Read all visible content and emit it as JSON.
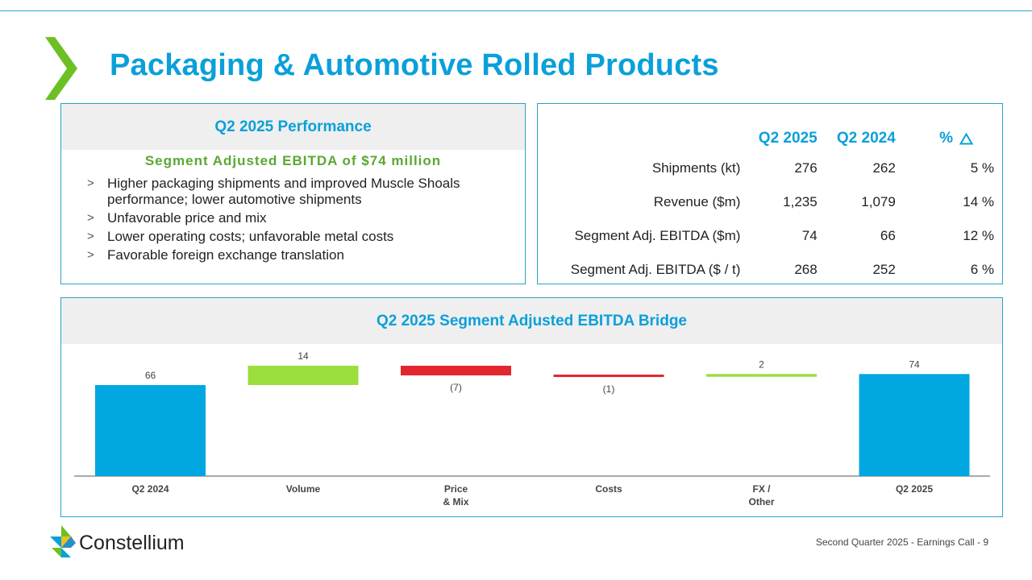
{
  "slide": {
    "title": "Packaging & Automotive Rolled Products",
    "footer": "Second Quarter 2025 -  Earnings Call - 9",
    "logo_text": "Constellium"
  },
  "performance": {
    "heading": "Q2 2025 Performance",
    "subheading": "Segment Adjusted EBITDA of $74 million",
    "bullet_marker": ">",
    "bullets": [
      "Higher packaging shipments and improved Muscle Shoals performance; lower automotive shipments",
      "Unfavorable price and mix",
      "Lower operating costs; unfavorable metal costs",
      "Favorable foreign exchange translation"
    ]
  },
  "metrics": {
    "headers": [
      "Q2 2025",
      "Q2 2024",
      "%"
    ],
    "rows": [
      {
        "label": "Shipments (kt)",
        "q2_2025": "276",
        "q2_2024": "262",
        "pct": "5 %"
      },
      {
        "label": "Revenue ($m)",
        "q2_2025": "1,235",
        "q2_2024": "1,079",
        "pct": "14 %"
      },
      {
        "label": "Segment Adj. EBITDA  ($m)",
        "q2_2025": "74",
        "q2_2024": "66",
        "pct": "12 %"
      },
      {
        "label": "Segment Adj. EBITDA ($ / t)",
        "q2_2025": "268",
        "q2_2024": "252",
        "pct": "6 %"
      }
    ]
  },
  "bridge": {
    "heading": "Q2 2025 Segment Adjusted EBITDA Bridge"
  },
  "chart_data": {
    "type": "bar",
    "title": "Q2 2025 Segment Adjusted EBITDA Bridge",
    "categories": [
      "Q2 2024",
      "Volume",
      "Price\n& Mix",
      "Costs",
      "FX /\nOther",
      "Q2 2025"
    ],
    "values": [
      66,
      14,
      -7,
      -1,
      2,
      74
    ],
    "value_labels": [
      "66",
      "14",
      "(7)",
      "(1)",
      "2",
      "74"
    ],
    "kinds": [
      "total",
      "delta",
      "delta",
      "delta",
      "delta",
      "total"
    ],
    "colors": {
      "total": "#00a7e1",
      "increase": "#9bde3e",
      "decrease": "#e3262d"
    },
    "ylim": [
      0,
      80
    ],
    "grid": false
  },
  "colors": {
    "accent": "#0aa0d9",
    "border": "#29a3c9",
    "subheading_green": "#5aa832",
    "chevron_green": "#6cc024"
  }
}
